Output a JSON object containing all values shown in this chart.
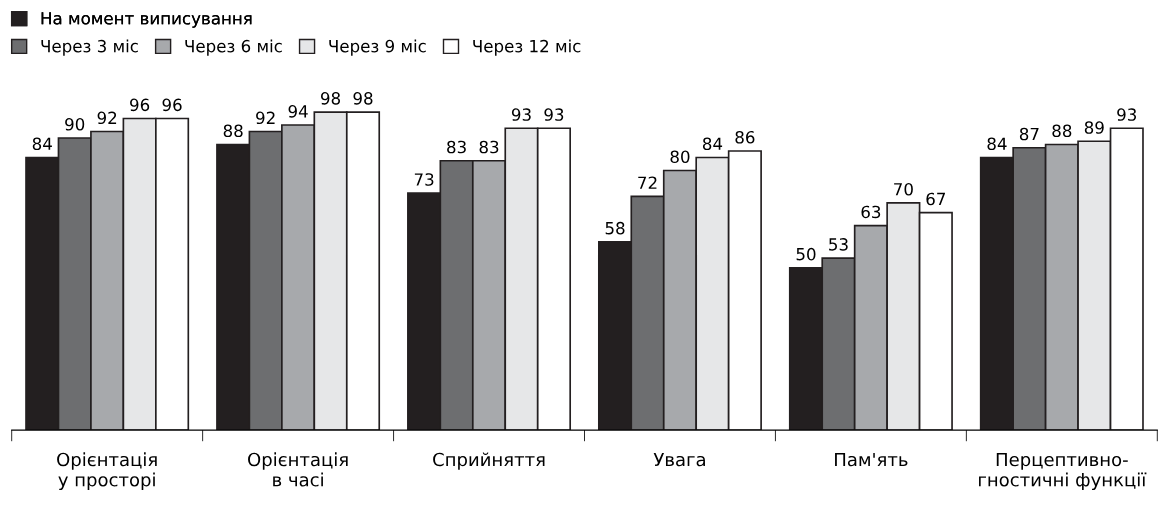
{
  "chart_data": {
    "type": "bar",
    "categories": [
      "Орієнтація\nу просторі",
      "Орієнтація\nв часі",
      "Сприйняття",
      "Увага",
      "Пам'ять",
      "Перцептивно-\nгностичні функції"
    ],
    "series": [
      {
        "name": "На момент виписування",
        "color": "#231f20",
        "values": [
          84,
          88,
          73,
          58,
          50,
          84
        ]
      },
      {
        "name": "Через 3 міс",
        "color": "#6d6e70",
        "values": [
          90,
          92,
          83,
          72,
          53,
          87
        ]
      },
      {
        "name": "Через 6 міс",
        "color": "#a7a9ac",
        "values": [
          92,
          94,
          83,
          80,
          63,
          88
        ]
      },
      {
        "name": "Через 9 міс",
        "color": "#e6e7e8",
        "values": [
          96,
          98,
          93,
          84,
          70,
          89
        ]
      },
      {
        "name": "Через 12 міс",
        "color": "#ffffff",
        "values": [
          96,
          98,
          93,
          86,
          67,
          93
        ]
      }
    ],
    "data_labels": true,
    "legend": "top left",
    "grid": false,
    "tick_labels": "x"
  }
}
